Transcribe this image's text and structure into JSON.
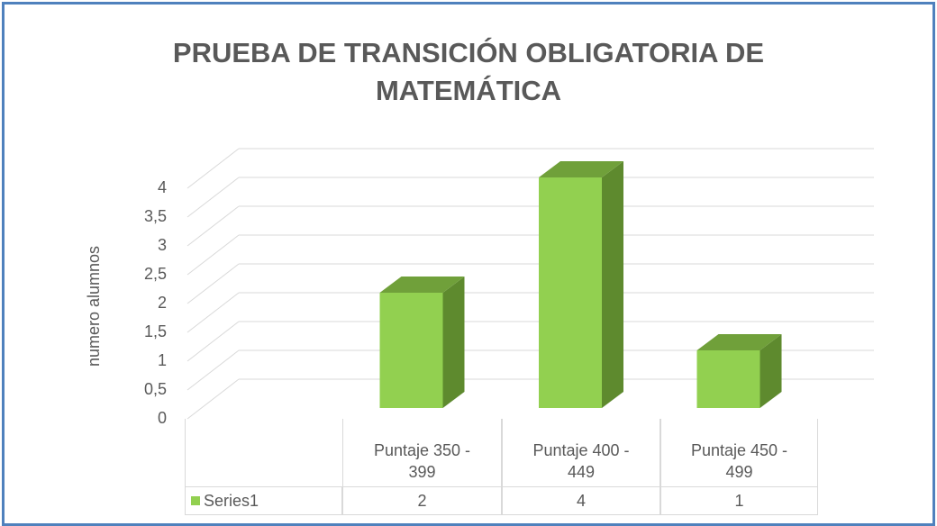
{
  "chart_data": {
    "type": "bar3d",
    "title": "PRUEBA DE TRANSICIÓN OBLIGATORIA DE MATEMÁTICA",
    "y_label": "numero alumnos",
    "categories": [
      "Puntaje 350 - 399",
      "Puntaje 400 - 449",
      "Puntaje 450 - 499"
    ],
    "series": [
      {
        "name": "Series1",
        "color": "#92d050",
        "values": [
          2,
          4,
          1
        ]
      }
    ],
    "ylim": [
      0,
      4
    ],
    "yticks": [
      0,
      {
        "value": 0.5,
        "label": "0,5"
      },
      1,
      {
        "value": 1.5,
        "label": "1,5"
      },
      2,
      {
        "value": 2.5,
        "label": "2,5"
      },
      3,
      {
        "value": 3.5,
        "label": "3,5"
      },
      4
    ],
    "grid": true
  }
}
